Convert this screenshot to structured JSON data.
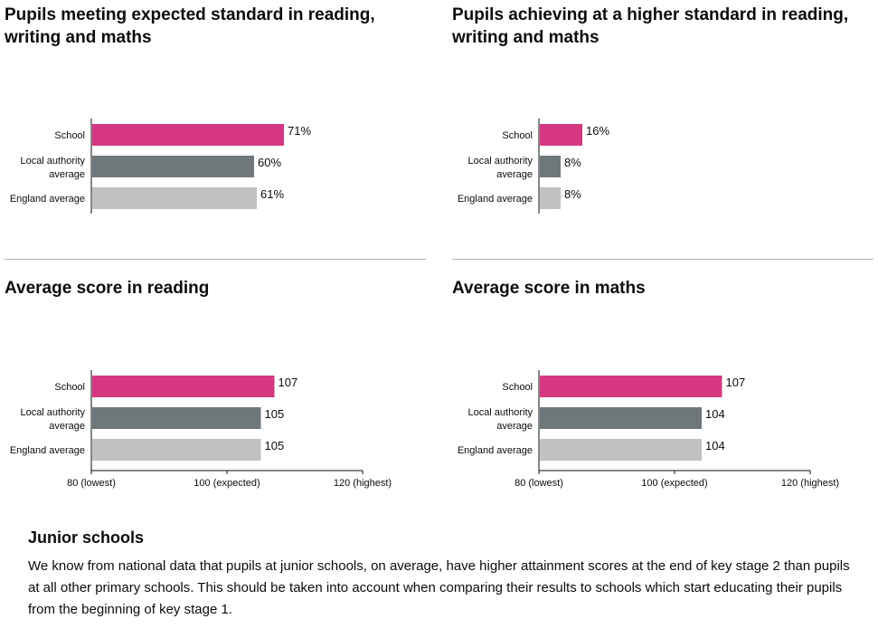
{
  "colors": {
    "school": "#d53880",
    "local": "#6f777b",
    "england": "#bfc1c3",
    "axis": "#0b0c0c"
  },
  "chart_data": [
    {
      "type": "bar",
      "title": "Pupils meeting expected standard in reading, writing and maths",
      "categories": [
        "School",
        "Local authority average",
        "England average"
      ],
      "values": [
        71,
        60,
        61
      ],
      "value_labels": [
        "71%",
        "60%",
        "61%"
      ],
      "xlim": [
        0,
        100
      ],
      "grid": false
    },
    {
      "type": "bar",
      "title": "Pupils achieving at a higher standard in reading, writing and maths",
      "categories": [
        "School",
        "Local authority average",
        "England average"
      ],
      "values": [
        16,
        8,
        8
      ],
      "value_labels": [
        "16%",
        "8%",
        "8%"
      ],
      "xlim": [
        0,
        100
      ],
      "grid": false
    },
    {
      "type": "bar",
      "title": "Average score in reading",
      "categories": [
        "School",
        "Local authority average",
        "England average"
      ],
      "values": [
        107,
        105,
        105
      ],
      "value_labels": [
        "107",
        "105",
        "105"
      ],
      "xlim": [
        80,
        120
      ],
      "xticks": [
        80,
        100,
        120
      ],
      "xtick_labels": [
        "80 (lowest)",
        "100 (expected)",
        "120 (highest)"
      ],
      "grid": false
    },
    {
      "type": "bar",
      "title": "Average score in maths",
      "categories": [
        "School",
        "Local authority average",
        "England average"
      ],
      "values": [
        107,
        104,
        104
      ],
      "value_labels": [
        "107",
        "104",
        "104"
      ],
      "xlim": [
        80,
        120
      ],
      "xticks": [
        80,
        100,
        120
      ],
      "xtick_labels": [
        "80 (lowest)",
        "100 (expected)",
        "120 (highest)"
      ],
      "grid": false
    }
  ],
  "junior": {
    "heading": "Junior schools",
    "body": "We know from national data that pupils at junior schools, on average, have higher attainment scores at the end of key stage 2 than pupils at all other primary schools. This should be taken into account when comparing their results to schools which start educating their pupils from the beginning of key stage 1."
  }
}
